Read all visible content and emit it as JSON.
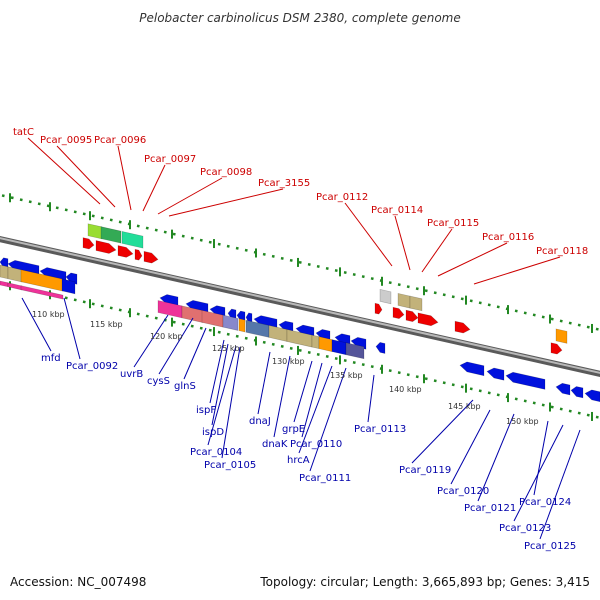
{
  "title": "Pelobacter carbinolicus DSM 2380, complete genome",
  "footer": {
    "accession": "Accession: NC_007498",
    "topology": "Topology: circular; Length: 3,665,893 bp; Genes: 3,415"
  },
  "colors": {
    "top_label": "#cc0000",
    "bottom_label": "#0000aa",
    "forward_gene": "#ee0000",
    "reverse_gene": "#0011dd",
    "scale_tick": "#228822",
    "backbone": "#888888"
  },
  "scale_labels": [
    "110 kbp",
    "115 kbp",
    "120 kbp",
    "125 kbp",
    "130 kbp",
    "135 kbp",
    "140 kbp",
    "145 kbp",
    "150 kbp"
  ],
  "top_labels": [
    "tatC",
    "Pcar_0095",
    "Pcar_0096",
    "Pcar_0097",
    "Pcar_0098",
    "Pcar_3155",
    "Pcar_0112",
    "Pcar_0114",
    "Pcar_0115",
    "Pcar_0116",
    "Pcar_0118"
  ],
  "bottom_labels": [
    "mfd",
    "Pcar_0092",
    "uvrB",
    "cysS",
    "glnS",
    "ispF",
    "ispD",
    "Pcar_0104",
    "Pcar_0105",
    "dnaJ",
    "dnaK",
    "grpE",
    "Pcar_0110",
    "hrcA",
    "Pcar_0111",
    "Pcar_0113",
    "Pcar_0119",
    "Pcar_0120",
    "Pcar_0121",
    "Pcar_0124",
    "Pcar_0123",
    "Pcar_0125"
  ]
}
